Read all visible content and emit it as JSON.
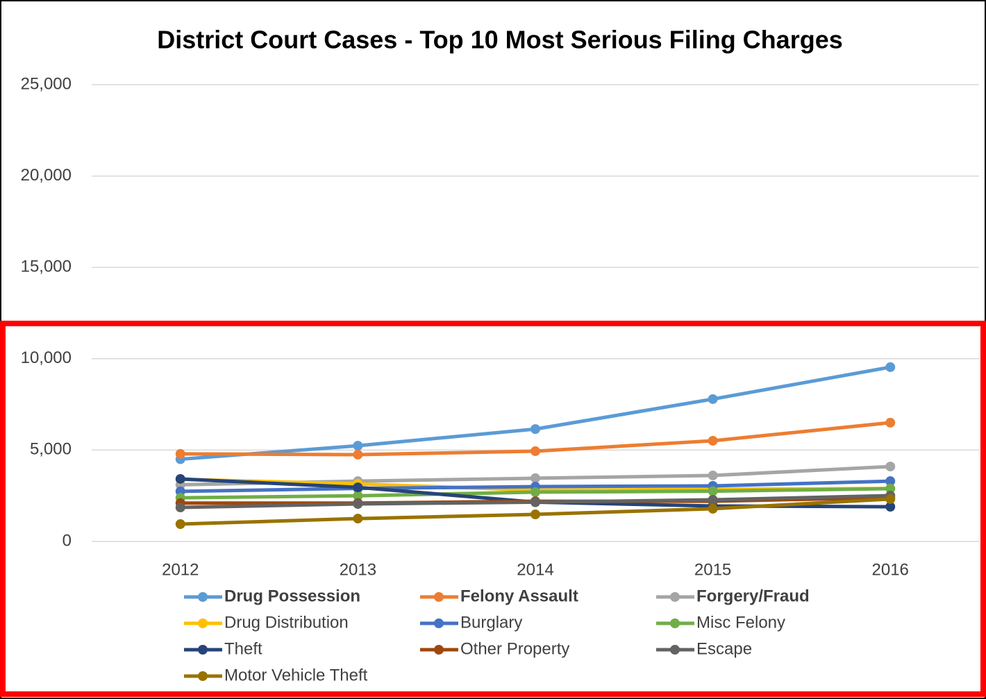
{
  "chart_data": {
    "type": "line",
    "title": "District Court Cases - Top 10 Most Serious Filing Charges",
    "categories": [
      "2012",
      "2013",
      "2014",
      "2015",
      "2016"
    ],
    "ylim": [
      0,
      25000
    ],
    "yticks": [
      0,
      {
        "value": 5000,
        "label": "5,000"
      },
      {
        "value": 10000,
        "label": "10,000"
      },
      {
        "value": 15000,
        "label": "15,000"
      },
      {
        "value": 20000,
        "label": "20,000"
      },
      {
        "value": 25000,
        "label": "25,000"
      }
    ],
    "grid": true,
    "legend": "bottom",
    "series": [
      {
        "name": "Drug Possession",
        "color": "#5b9bd5",
        "values": [
          4500,
          5240,
          6150,
          7790,
          9540
        ]
      },
      {
        "name": "Felony Assault",
        "color": "#ed7d31",
        "values": [
          4790,
          4750,
          4940,
          5510,
          6500
        ]
      },
      {
        "name": "Forgery/Fraud",
        "color": "#a5a5a5",
        "values": [
          3100,
          3300,
          3460,
          3610,
          4100
        ]
      },
      {
        "name": "Drug Distribution",
        "color": "#ffc000",
        "values": [
          3400,
          3150,
          2800,
          2850,
          2900
        ]
      },
      {
        "name": "Burglary",
        "color": "#4472c4",
        "values": [
          2740,
          2900,
          3000,
          3040,
          3300
        ]
      },
      {
        "name": "Misc Felony",
        "color": "#70ad47",
        "values": [
          2390,
          2500,
          2700,
          2750,
          2890
        ]
      },
      {
        "name": "Theft",
        "color": "#264478",
        "values": [
          3420,
          2960,
          2150,
          1940,
          1900
        ]
      },
      {
        "name": "Other Property",
        "color": "#9e480e",
        "values": [
          2100,
          2100,
          2200,
          2200,
          2400
        ]
      },
      {
        "name": "Escape",
        "color": "#636363",
        "values": [
          1860,
          2050,
          2150,
          2280,
          2510
        ]
      },
      {
        "name": "Motor Vehicle Theft",
        "color": "#997300",
        "values": [
          950,
          1250,
          1480,
          1790,
          2320
        ]
      }
    ]
  }
}
